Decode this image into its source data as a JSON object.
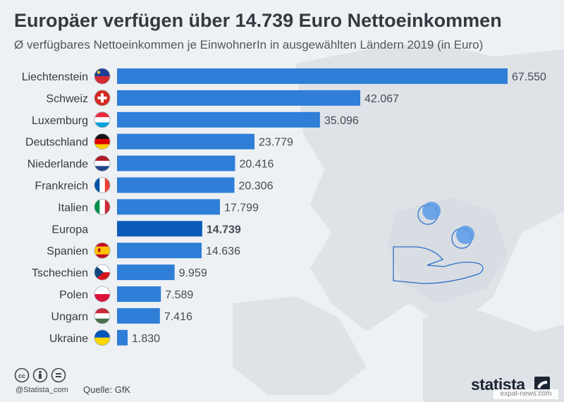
{
  "title": "Europäer verfügen über 14.739 Euro Nettoeinkommen",
  "subtitle": "Ø verfügbares Nettoeinkommen je EinwohnerIn in ausgewählten Ländern 2019 (in Euro)",
  "footer": {
    "handle": "@Statista_com",
    "source": "Quelle: GfK",
    "brand": "statista",
    "watermark": "expat-news.com"
  },
  "colors": {
    "bar": "#2f7ed8",
    "highlight": "#0b5cb8",
    "label": "#333a40",
    "value": "#444b52"
  },
  "chart_data": {
    "type": "bar",
    "orientation": "horizontal",
    "categories": [
      "Liechtenstein",
      "Schweiz",
      "Luxemburg",
      "Deutschland",
      "Niederlande",
      "Frankreich",
      "Italien",
      "Europa",
      "Spanien",
      "Tschechien",
      "Polen",
      "Ungarn",
      "Ukraine"
    ],
    "values": [
      67550,
      42067,
      35096,
      23779,
      20416,
      20306,
      17799,
      14739,
      14636,
      9959,
      7589,
      7416,
      1830
    ],
    "value_labels": [
      "67.550",
      "42.067",
      "35.096",
      "23.779",
      "20.416",
      "20.306",
      "17.799",
      "14.739",
      "14.636",
      "9.959",
      "7.589",
      "7.416",
      "1.830"
    ],
    "highlight": "Europa",
    "flags": [
      "flag-liechtenstein",
      "flag-switzerland",
      "flag-luxembourg",
      "flag-germany",
      "flag-netherlands",
      "flag-france",
      "flag-italy",
      "",
      "flag-spain",
      "flag-czechia",
      "flag-poland",
      "flag-hungary",
      "flag-ukraine"
    ],
    "xlim": [
      0,
      67550
    ],
    "grid": false,
    "legend": "none"
  }
}
